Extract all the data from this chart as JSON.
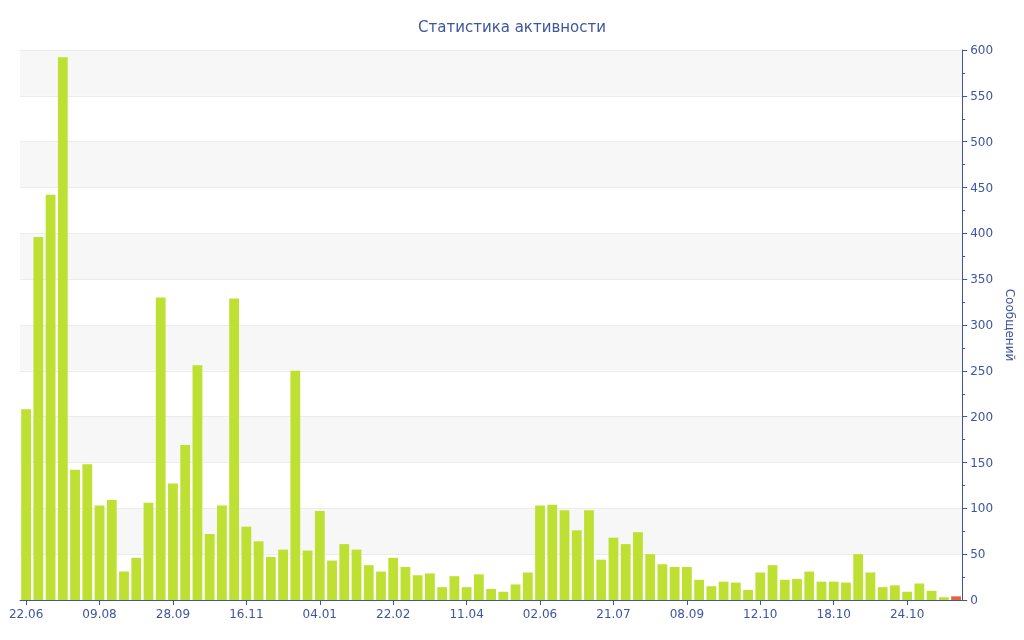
{
  "chart_data": {
    "type": "bar",
    "title": "Статистика активности",
    "ylabel": "Сообщений",
    "categories": [
      "22.06",
      null,
      null,
      null,
      null,
      null,
      "09.08",
      null,
      null,
      null,
      null,
      null,
      "28.09",
      null,
      null,
      null,
      null,
      null,
      "16.11",
      null,
      null,
      null,
      null,
      null,
      "04.01",
      null,
      null,
      null,
      null,
      null,
      "22.02",
      null,
      null,
      null,
      null,
      null,
      "11.04",
      null,
      null,
      null,
      null,
      null,
      "02.06",
      null,
      null,
      null,
      null,
      null,
      "21.07",
      null,
      null,
      null,
      null,
      null,
      "08.09",
      null,
      null,
      null,
      null,
      null,
      "12.10",
      null,
      null,
      null,
      null,
      null,
      "18.10",
      null,
      null,
      null,
      null,
      null,
      "24.10",
      null,
      null,
      null,
      null
    ],
    "values": [
      208,
      396,
      442,
      592,
      142,
      148,
      103,
      109,
      31,
      46,
      106,
      330,
      127,
      169,
      256,
      72,
      103,
      329,
      80,
      64,
      47,
      55,
      250,
      54,
      97,
      43,
      61,
      55,
      38,
      31,
      46,
      36,
      27,
      29,
      14,
      26,
      14,
      28,
      12,
      9,
      17,
      30,
      103,
      104,
      98,
      76,
      98,
      44,
      68,
      61,
      74,
      50,
      39,
      36,
      36,
      22,
      15,
      20,
      19,
      11,
      30,
      38,
      22,
      23,
      31,
      20,
      20,
      19,
      50,
      30,
      14,
      16,
      9,
      18,
      10,
      3,
      4
    ],
    "colors": [
      "#bde032",
      "#bde032",
      "#bde032",
      "#bde032",
      "#bde032",
      "#bde032",
      "#bde032",
      "#bde032",
      "#bde032",
      "#bde032",
      "#bde032",
      "#bde032",
      "#bde032",
      "#bde032",
      "#bde032",
      "#bde032",
      "#bde032",
      "#bde032",
      "#bde032",
      "#bde032",
      "#bde032",
      "#bde032",
      "#bde032",
      "#bde032",
      "#bde032",
      "#bde032",
      "#bde032",
      "#bde032",
      "#bde032",
      "#bde032",
      "#bde032",
      "#bde032",
      "#bde032",
      "#bde032",
      "#bde032",
      "#bde032",
      "#bde032",
      "#bde032",
      "#bde032",
      "#bde032",
      "#bde032",
      "#bde032",
      "#bde032",
      "#bde032",
      "#bde032",
      "#bde032",
      "#bde032",
      "#bde032",
      "#bde032",
      "#bde032",
      "#bde032",
      "#bde032",
      "#bde032",
      "#bde032",
      "#bde032",
      "#bde032",
      "#bde032",
      "#bde032",
      "#bde032",
      "#bde032",
      "#bde032",
      "#bde032",
      "#bde032",
      "#bde032",
      "#bde032",
      "#bde032",
      "#bde032",
      "#bde032",
      "#bde032",
      "#bde032",
      "#bde032",
      "#bde032",
      "#bde032",
      "#bde032",
      "#bde032",
      "#bde032",
      "#e8643a"
    ],
    "ylim": [
      0,
      600
    ],
    "yticks": [
      0,
      50,
      100,
      150,
      200,
      250,
      300,
      350,
      400,
      450,
      500,
      550,
      600
    ],
    "grid": "y"
  }
}
